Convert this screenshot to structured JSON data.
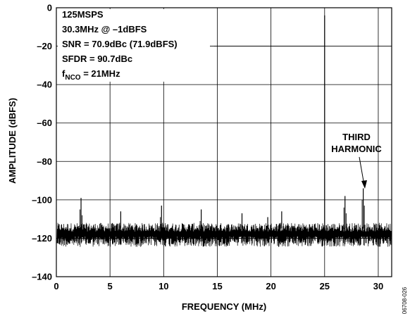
{
  "chart_data": {
    "type": "line",
    "xlabel": "FREQUENCY (MHz)",
    "ylabel": "AMPLITUDE (dBFS)",
    "xlim": [
      0,
      31.25
    ],
    "ylim": [
      -140,
      0
    ],
    "x_ticks": [
      "0",
      "5",
      "10",
      "15",
      "20",
      "25",
      "30"
    ],
    "y_ticks": [
      "0",
      "–20",
      "–40",
      "–60",
      "–80",
      "–100",
      "–120",
      "–140"
    ],
    "grid": true,
    "noise_floor_dbfs": -118,
    "series": [
      {
        "spurs": [
          {
            "x": 2.3,
            "y": -99
          },
          {
            "x": 6.0,
            "y": -106
          },
          {
            "x": 9.8,
            "y": -103
          },
          {
            "x": 13.5,
            "y": -105
          },
          {
            "x": 17.3,
            "y": -107
          },
          {
            "x": 19.7,
            "y": -109
          },
          {
            "x": 21.0,
            "y": -106
          },
          {
            "x": 25.0,
            "y": -4
          },
          {
            "x": 26.9,
            "y": -98
          },
          {
            "x": 28.6,
            "y": -94
          }
        ]
      }
    ],
    "annotations": {
      "lines": [
        {
          "text": "125MSPS"
        },
        {
          "text": "30.3MHz @ –1dBFS"
        },
        {
          "text": "SNR = 70.9dBc (71.9dBFS)"
        },
        {
          "text": "SFDR = 90.7dBc"
        },
        {
          "text_main": "f",
          "text_sub": "NCO",
          "text_tail": " = 21MHz"
        }
      ],
      "third_harmonic": [
        "THIRD",
        "HARMONIC"
      ]
    },
    "figure_id": "06708-026"
  }
}
